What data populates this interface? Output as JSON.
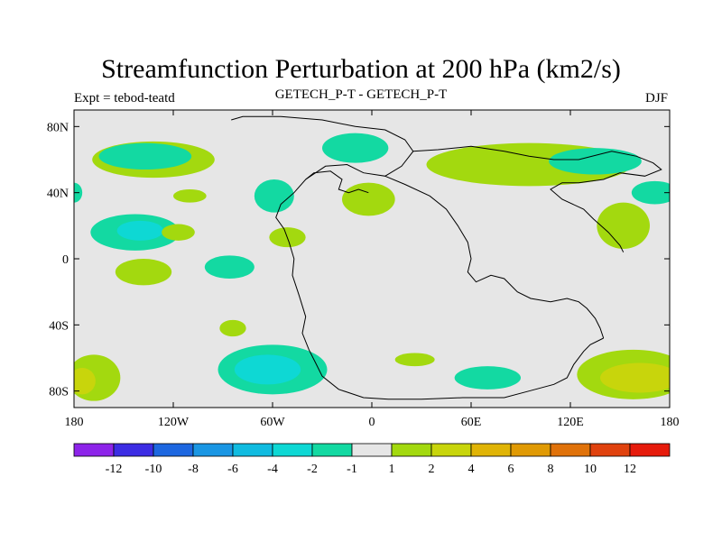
{
  "header": {
    "title": "Streamfunction Perturbation at 200 hPa (km2/s)",
    "left_label": "Expt = tebod-teatd",
    "center_label": "GETECH_P-T - GETECH_P-T",
    "right_label": "DJF"
  },
  "axes": {
    "y_ticks": [
      {
        "value": 80,
        "label": "80N"
      },
      {
        "value": 40,
        "label": "40N"
      },
      {
        "value": 0,
        "label": "0"
      },
      {
        "value": -40,
        "label": "40S"
      },
      {
        "value": -80,
        "label": "80S"
      }
    ],
    "x_ticks": [
      {
        "value": -180,
        "label": "180"
      },
      {
        "value": -120,
        "label": "120W"
      },
      {
        "value": -60,
        "label": "60W"
      },
      {
        "value": 0,
        "label": "0"
      },
      {
        "value": 60,
        "label": "60E"
      },
      {
        "value": 120,
        "label": "120E"
      },
      {
        "value": 180,
        "label": "180"
      }
    ],
    "lon_range": [
      -180,
      180
    ],
    "lat_range": [
      -90,
      90
    ]
  },
  "colorbar": {
    "colors": [
      "#8d24e9",
      "#3c2de3",
      "#1d67e0",
      "#1a96e3",
      "#10bbe0",
      "#0ed8d4",
      "#13d9a2",
      "#e6e6e6",
      "#a3d90f",
      "#c8d50c",
      "#e0b406",
      "#e09a04",
      "#e0720a",
      "#e0420e",
      "#e61b0c"
    ],
    "labels": [
      "-12",
      "-10",
      "-8",
      "-6",
      "-4",
      "-2",
      "-1",
      "1",
      "2",
      "4",
      "6",
      "8",
      "10",
      "12"
    ]
  },
  "map": {
    "background_color": "#e6e6e6",
    "blobs": [
      {
        "name": "nw-pacific-positive-blob",
        "lon": -132,
        "lat": 60,
        "rx": 37,
        "ry": 11,
        "level": "2"
      },
      {
        "name": "n-pacific-negative-blob",
        "lon": -137,
        "lat": 62,
        "rx": 28,
        "ry": 8,
        "level": "-1"
      },
      {
        "name": "n-atlantic-negative-blob",
        "lon": -10,
        "lat": 67,
        "rx": 20,
        "ry": 9,
        "level": "-1"
      },
      {
        "name": "asia-positive-blob",
        "lon": 95,
        "lat": 57,
        "rx": 62,
        "ry": 13,
        "level": "2"
      },
      {
        "name": "asia-negative-blob",
        "lon": 135,
        "lat": 59,
        "rx": 28,
        "ry": 8,
        "level": "-1"
      },
      {
        "name": "w-edge-negative-blob",
        "lon": -180,
        "lat": 40,
        "rx": 5,
        "ry": 6,
        "level": "-1"
      },
      {
        "name": "e-edge-negative-blob",
        "lon": 171,
        "lat": 40,
        "rx": 14,
        "ry": 7,
        "level": "-1"
      },
      {
        "name": "ne-pacific-positive-blob",
        "lon": -110,
        "lat": 38,
        "rx": 10,
        "ry": 4,
        "level": "2"
      },
      {
        "name": "n-america-negative-blob",
        "lon": -59,
        "lat": 38,
        "rx": 12,
        "ry": 10,
        "level": "-1"
      },
      {
        "name": "europe-positive-blob",
        "lon": -2,
        "lat": 36,
        "rx": 16,
        "ry": 10,
        "level": "2"
      },
      {
        "name": "nw-pacific-tropical-negative-blob",
        "lon": -143,
        "lat": 16,
        "rx": 27,
        "ry": 11,
        "level": "-1"
      },
      {
        "name": "nw-pacific-tropical-core-blob",
        "lon": -140,
        "lat": 17,
        "rx": 14,
        "ry": 6,
        "level": "-2"
      },
      {
        "name": "central-positive-blob",
        "lon": -51,
        "lat": 13,
        "rx": 11,
        "ry": 6,
        "level": "2"
      },
      {
        "name": "e-pacific-positive-blob",
        "lon": -117,
        "lat": 16,
        "rx": 10,
        "ry": 5,
        "level": "2"
      },
      {
        "name": "w-pacific-positive-blob",
        "lon": 152,
        "lat": 20,
        "rx": 16,
        "ry": 14,
        "level": "2"
      },
      {
        "name": "equatorial-positive-blob",
        "lon": -138,
        "lat": -8,
        "rx": 17,
        "ry": 8,
        "level": "2"
      },
      {
        "name": "equatorial-negative-blob",
        "lon": -86,
        "lat": -5,
        "rx": 15,
        "ry": 7,
        "level": "-1"
      },
      {
        "name": "s-pacific-positive-blob",
        "lon": -84,
        "lat": -42,
        "rx": 8,
        "ry": 5,
        "level": "2"
      },
      {
        "name": "s-pacific-negative-blob",
        "lon": -60,
        "lat": -67,
        "rx": 33,
        "ry": 15,
        "level": "-1"
      },
      {
        "name": "s-pacific-core-blob",
        "lon": -63,
        "lat": -67,
        "rx": 20,
        "ry": 9,
        "level": "-2"
      },
      {
        "name": "s-atlantic-positive-blob",
        "lon": 26,
        "lat": -61,
        "rx": 12,
        "ry": 4,
        "level": "2"
      },
      {
        "name": "s-indian-negative-blob",
        "lon": 70,
        "lat": -72,
        "rx": 20,
        "ry": 7,
        "level": "-1"
      },
      {
        "name": "sw-edge-positive-blob",
        "lon": -168,
        "lat": -72,
        "rx": 16,
        "ry": 14,
        "level": "2"
      },
      {
        "name": "sw-edge-core-blob",
        "lon": -175,
        "lat": -74,
        "rx": 8,
        "ry": 8,
        "level": "4"
      },
      {
        "name": "se-positive-blob",
        "lon": 158,
        "lat": -70,
        "rx": 34,
        "ry": 15,
        "level": "2"
      },
      {
        "name": "se-core-blob",
        "lon": 162,
        "lat": -72,
        "rx": 24,
        "ry": 9,
        "level": "4"
      }
    ],
    "coastlines": [
      {
        "name": "pangea-west-coastline",
        "points": [
          [
            -85,
            84
          ],
          [
            -78,
            86
          ],
          [
            -55,
            86
          ],
          [
            -30,
            84
          ],
          [
            -10,
            80
          ],
          [
            8,
            78
          ],
          [
            20,
            72
          ],
          [
            25,
            65
          ],
          [
            18,
            56
          ],
          [
            8,
            50
          ],
          [
            -5,
            52
          ],
          [
            -15,
            57
          ],
          [
            -28,
            56
          ],
          [
            -40,
            48
          ],
          [
            -47,
            40
          ],
          [
            -55,
            33
          ],
          [
            -58,
            25
          ],
          [
            -53,
            18
          ],
          [
            -50,
            10
          ],
          [
            -47,
            0
          ],
          [
            -48,
            -10
          ],
          [
            -44,
            -22
          ],
          [
            -40,
            -35
          ],
          [
            -42,
            -45
          ],
          [
            -38,
            -55
          ],
          [
            -34,
            -63
          ],
          [
            -30,
            -71
          ],
          [
            -20,
            -79
          ],
          [
            -5,
            -84
          ],
          [
            10,
            -85
          ],
          [
            30,
            -85
          ],
          [
            55,
            -84
          ],
          [
            80,
            -84
          ],
          [
            95,
            -80
          ],
          [
            110,
            -76
          ],
          [
            118,
            -72
          ],
          [
            122,
            -64
          ],
          [
            128,
            -56
          ],
          [
            132,
            -52
          ],
          [
            140,
            -48
          ]
        ]
      },
      {
        "name": "pangea-east-coastline",
        "points": [
          [
            8,
            50
          ],
          [
            20,
            45
          ],
          [
            35,
            38
          ],
          [
            45,
            30
          ],
          [
            52,
            20
          ],
          [
            58,
            10
          ],
          [
            60,
            0
          ],
          [
            58,
            -8
          ],
          [
            63,
            -14
          ],
          [
            72,
            -10
          ],
          [
            80,
            -12
          ],
          [
            88,
            -20
          ],
          [
            96,
            -24
          ],
          [
            108,
            -26
          ],
          [
            118,
            -24
          ],
          [
            125,
            -26
          ],
          [
            130,
            -30
          ],
          [
            135,
            -36
          ],
          [
            138,
            -42
          ],
          [
            140,
            -48
          ]
        ]
      },
      {
        "name": "siberia-coastline",
        "points": [
          [
            25,
            65
          ],
          [
            40,
            66
          ],
          [
            60,
            68
          ],
          [
            80,
            65
          ],
          [
            95,
            62
          ],
          [
            110,
            60
          ],
          [
            125,
            60
          ],
          [
            145,
            65
          ],
          [
            160,
            62
          ],
          [
            170,
            58
          ],
          [
            175,
            54
          ],
          [
            165,
            50
          ],
          [
            150,
            52
          ],
          [
            140,
            48
          ],
          [
            125,
            46
          ],
          [
            115,
            46
          ],
          [
            108,
            42
          ],
          [
            115,
            36
          ],
          [
            128,
            30
          ],
          [
            134,
            24
          ],
          [
            143,
            16
          ],
          [
            150,
            8
          ],
          [
            152,
            4
          ]
        ]
      },
      {
        "name": "central-europe-coastline",
        "points": [
          [
            -40,
            48
          ],
          [
            -35,
            52
          ],
          [
            -25,
            53
          ],
          [
            -18,
            48
          ],
          [
            -20,
            42
          ],
          [
            -14,
            40
          ],
          [
            -8,
            42
          ],
          [
            -2,
            40
          ]
        ]
      }
    ]
  }
}
